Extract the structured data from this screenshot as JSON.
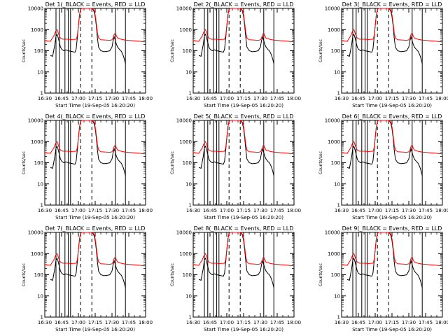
{
  "chart_data": {
    "type": "line",
    "layout": "3x3 grid of detector panels",
    "yscale": "log",
    "ylim": [
      1,
      10000
    ],
    "yticks": [
      "1",
      "10",
      "100",
      "1000",
      "10000"
    ],
    "ylabel": "Counts/sec",
    "xlim_minutes": [
      0,
      90
    ],
    "xticks": [
      "16:30",
      "16:45",
      "17:00",
      "17:15",
      "17:30",
      "17:45",
      "18:00"
    ],
    "xtick_minutes": [
      0,
      15,
      30,
      45,
      60,
      75,
      90
    ],
    "xlabel": "Start Time (19-Sep-05 16:20:20)",
    "solid_markers_minutes": [
      0,
      10,
      13,
      18,
      21,
      23,
      63,
      72
    ],
    "dashed_markers_minutes": [
      32,
      42
    ],
    "panels": [
      {
        "title": "Det 1(_BLACK = Events, RED = LLD"
      },
      {
        "title": "Det 2(_BLACK = Events, RED = LLD"
      },
      {
        "title": "Det 3(_BLACK = Events, RED = LLD"
      },
      {
        "title": "Det 4(_BLACK = Events, RED = LLD"
      },
      {
        "title": "Det 5(_BLACK = Events, RED = LLD"
      },
      {
        "title": "Det 6(_BLACK = Events, RED = LLD"
      },
      {
        "title": "Det 7(_BLACK = Events, RED = LLD"
      },
      {
        "title": "Det 8(_BLACK = Events, RED = LLD"
      },
      {
        "title": "Det 9(_BLACK = Events, RED = LLD"
      }
    ],
    "series": [
      {
        "name": "Events",
        "color": "#000000",
        "x_minutes": [
          5,
          7,
          9,
          10,
          11,
          12,
          13,
          14,
          15,
          17,
          19,
          21,
          23,
          25,
          27,
          28,
          29,
          30,
          31,
          32,
          33,
          34,
          35,
          36,
          37,
          38,
          39,
          40,
          41,
          42,
          43,
          44,
          45,
          46,
          47,
          48,
          50,
          53,
          56,
          58,
          60,
          61,
          62,
          63,
          64,
          65,
          67,
          68,
          69,
          70,
          71,
          72
        ],
        "values": [
          60,
          55,
          200,
          500,
          600,
          400,
          250,
          150,
          120,
          100,
          110,
          100,
          95,
          90,
          85,
          120,
          400,
          1500,
          5000,
          9000,
          10000,
          10000,
          10000,
          10000,
          10000,
          10000,
          10000,
          10000,
          10000,
          10000,
          9000,
          7000,
          4000,
          1500,
          400,
          150,
          100,
          90,
          95,
          100,
          150,
          300,
          450,
          300,
          200,
          150,
          110,
          100,
          80,
          60,
          40,
          25
        ]
      },
      {
        "name": "LLD",
        "color": "#ff0000",
        "x_minutes": [
          0,
          5,
          8,
          10,
          11,
          12,
          13,
          14,
          16,
          20,
          24,
          28,
          29,
          30,
          31,
          32,
          33,
          34,
          35,
          36,
          37,
          38,
          39,
          40,
          41,
          42,
          43,
          44,
          45,
          46,
          47,
          48,
          50,
          55,
          58,
          60,
          61,
          62,
          63,
          64,
          65,
          68,
          72,
          78,
          85,
          90
        ],
        "values": [
          300,
          280,
          500,
          900,
          1000,
          700,
          500,
          400,
          350,
          350,
          340,
          350,
          500,
          1500,
          5000,
          9000,
          10000,
          10000,
          10000,
          10000,
          10000,
          10000,
          10000,
          10000,
          10000,
          10000,
          9500,
          8000,
          5000,
          2000,
          700,
          400,
          330,
          320,
          310,
          330,
          400,
          600,
          700,
          500,
          400,
          350,
          320,
          300,
          280,
          260
        ]
      }
    ]
  }
}
